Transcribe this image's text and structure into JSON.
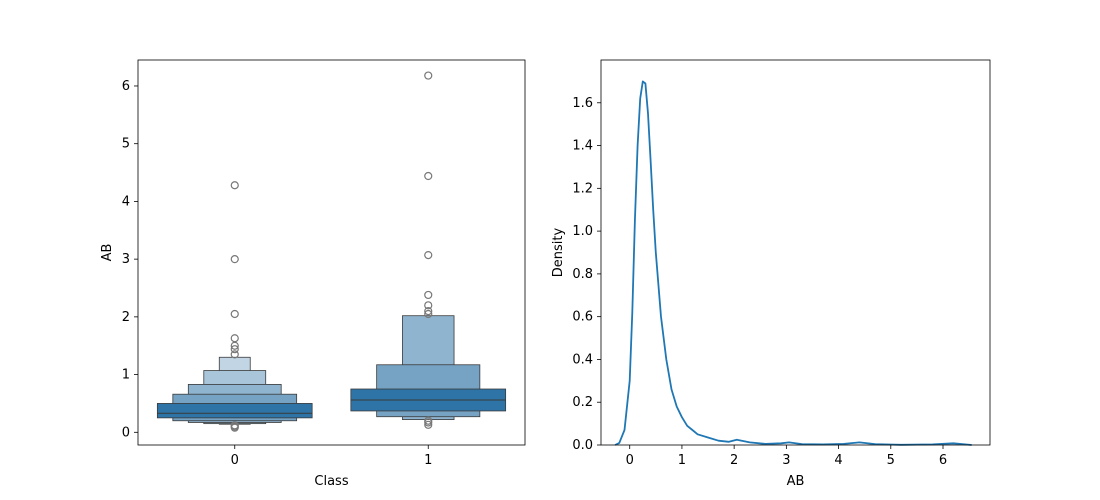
{
  "chart_data": [
    {
      "type": "boxen",
      "xlabel": "Class",
      "ylabel": "AB",
      "categories": [
        "0",
        "1"
      ],
      "ylim": [
        -0.22,
        6.45
      ],
      "yticks": [
        0,
        1,
        2,
        3,
        4,
        5,
        6
      ],
      "grid": false,
      "color": "#2f74a6",
      "boxes": [
        {
          "category": "0",
          "median": 0.33,
          "levels": [
            {
              "low": 0.25,
              "high": 0.5
            },
            {
              "low": 0.2,
              "high": 0.66
            },
            {
              "low": 0.17,
              "high": 0.83
            },
            {
              "low": 0.15,
              "high": 1.07
            },
            {
              "low": 0.14,
              "high": 1.3
            }
          ],
          "outliers": [
            4.28,
            3.0,
            2.05,
            1.63,
            1.5,
            1.44,
            1.35,
            0.12,
            0.1,
            0.08
          ]
        },
        {
          "category": "1",
          "median": 0.56,
          "levels": [
            {
              "low": 0.37,
              "high": 0.75
            },
            {
              "low": 0.27,
              "high": 1.17
            },
            {
              "low": 0.22,
              "high": 2.02
            }
          ],
          "outliers": [
            6.18,
            4.44,
            3.07,
            2.38,
            2.2,
            2.1,
            2.05,
            0.2,
            0.17,
            0.13
          ]
        }
      ]
    },
    {
      "type": "line",
      "subtype": "kde",
      "xlabel": "AB",
      "ylabel": "Density",
      "xlim": [
        -0.55,
        6.9
      ],
      "ylim": [
        0,
        1.8
      ],
      "xticks": [
        0,
        1,
        2,
        3,
        4,
        5,
        6
      ],
      "yticks": [
        0.0,
        0.2,
        0.4,
        0.6,
        0.8,
        1.0,
        1.2,
        1.4,
        1.6
      ],
      "grid": false,
      "color": "#1f77b4",
      "x": [
        -0.28,
        -0.2,
        -0.1,
        0.0,
        0.05,
        0.1,
        0.15,
        0.2,
        0.25,
        0.3,
        0.35,
        0.4,
        0.45,
        0.5,
        0.6,
        0.7,
        0.8,
        0.9,
        1.0,
        1.1,
        1.2,
        1.3,
        1.5,
        1.7,
        1.9,
        2.05,
        2.3,
        2.6,
        2.9,
        3.05,
        3.3,
        3.7,
        4.1,
        4.4,
        4.7,
        5.2,
        5.8,
        6.2,
        6.55
      ],
      "y": [
        0.0,
        0.01,
        0.07,
        0.3,
        0.62,
        1.05,
        1.4,
        1.62,
        1.7,
        1.69,
        1.55,
        1.33,
        1.1,
        0.9,
        0.6,
        0.4,
        0.26,
        0.18,
        0.13,
        0.09,
        0.07,
        0.05,
        0.035,
        0.02,
        0.015,
        0.025,
        0.012,
        0.005,
        0.008,
        0.012,
        0.004,
        0.003,
        0.005,
        0.012,
        0.004,
        0.001,
        0.003,
        0.008,
        0.0
      ]
    }
  ]
}
